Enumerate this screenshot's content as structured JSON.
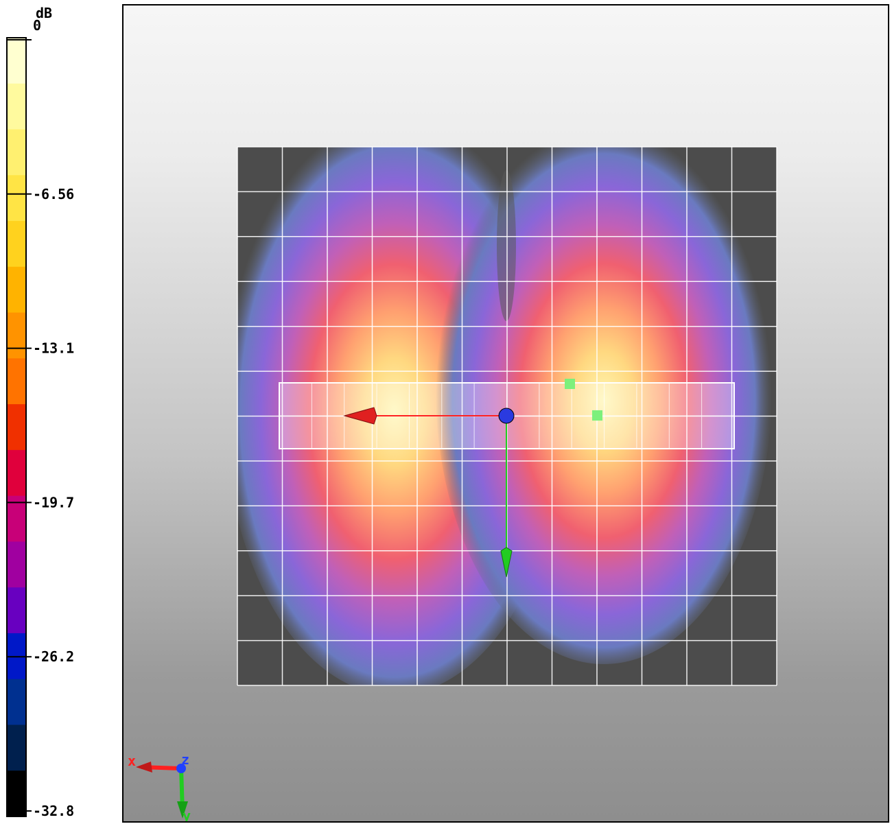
{
  "colorbar": {
    "unit": "dB",
    "ticks": [
      "0",
      "-6.56",
      "-13.1",
      "-19.7",
      "-26.2",
      "-32.8"
    ],
    "colors": [
      "#FFFFD0",
      "#FFFA9E",
      "#FFF070",
      "#FFE445",
      "#FFD21E",
      "#FFB300",
      "#FF9300",
      "#FF7300",
      "#F03000",
      "#E0003C",
      "#C80078",
      "#A000A0",
      "#6800C0",
      "#0018C8",
      "#003090",
      "#00204E",
      "#000000"
    ]
  },
  "field": {
    "colors": {
      "low": "#505050",
      "mid": "#8a5cc8",
      "high": "#ff6a5a",
      "peak": "#fff2a0"
    }
  },
  "axes_triad": {
    "x_label": "x",
    "y_label": "y",
    "z_label": "z",
    "x_color": "#ff2020",
    "y_color": "#22cc22",
    "z_color": "#2040ff"
  },
  "markers": {
    "color": "#7CF07C"
  }
}
